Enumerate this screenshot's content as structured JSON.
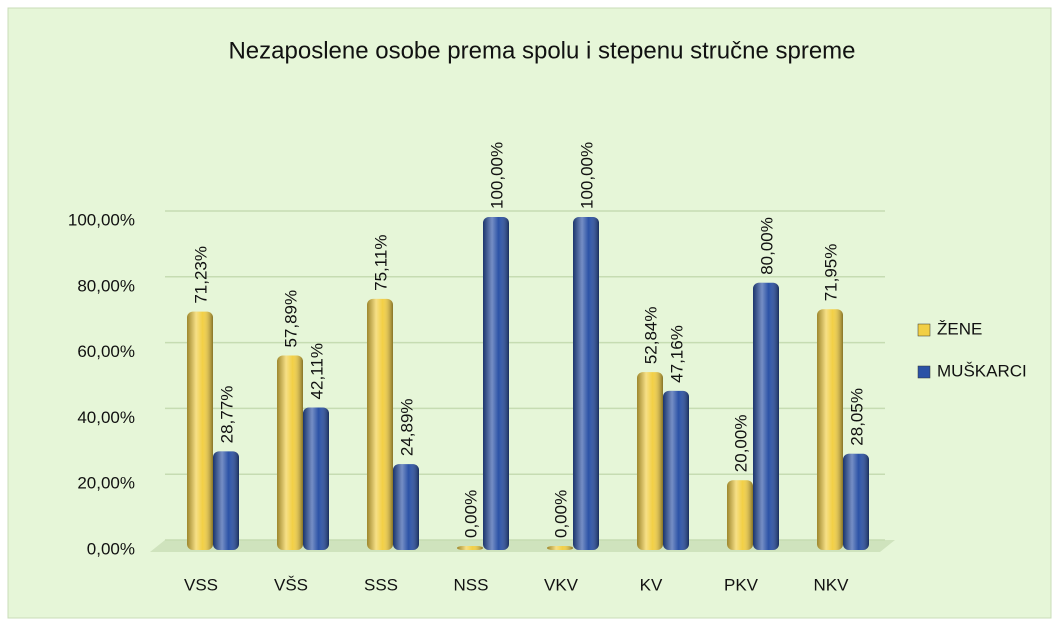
{
  "chart_data": {
    "type": "bar",
    "title": "Nezaposlene osobe prema spolu i stepenu stručne spreme",
    "categories": [
      "VSS",
      "VŠS",
      "SSS",
      "NSS",
      "VKV",
      "KV",
      "PKV",
      "NKV"
    ],
    "series": [
      {
        "name": "ŽENE",
        "color": "#f2cf45",
        "values": [
          71.23,
          57.89,
          75.11,
          0,
          0,
          52.84,
          20,
          71.95
        ],
        "value_labels": [
          "71,23%",
          "57,89%",
          "75,11%",
          "0,00%",
          "0,00%",
          "52,84%",
          "20,00%",
          "71,95%"
        ]
      },
      {
        "name": "MUŠKARCI",
        "color": "#2b52a6",
        "values": [
          28.77,
          42.11,
          24.89,
          100,
          100,
          47.16,
          80,
          28.05
        ],
        "value_labels": [
          "28,77%",
          "42,11%",
          "24,89%",
          "100,00%",
          "100,00%",
          "47,16%",
          "80,00%",
          "28,05%"
        ]
      }
    ],
    "ylim": [
      0,
      100
    ],
    "yticks": [
      {
        "value": 0,
        "label": "0,00%"
      },
      {
        "value": 20,
        "label": "20,00%"
      },
      {
        "value": 40,
        "label": "40,00%"
      },
      {
        "value": 60,
        "label": "60,00%"
      },
      {
        "value": 80,
        "label": "80,00%"
      },
      {
        "value": 100,
        "label": "100,00%"
      }
    ],
    "grid": true,
    "legend": "right"
  }
}
